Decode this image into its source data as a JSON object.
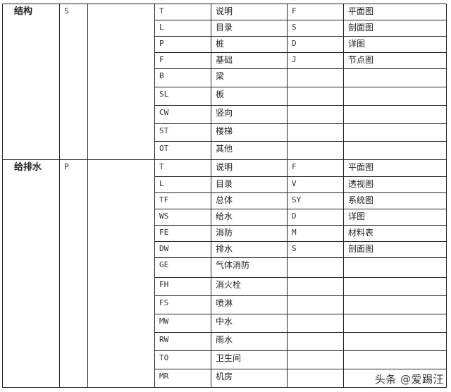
{
  "sections": [
    {
      "discipline": "结构",
      "code": "S",
      "rows": [
        [
          "T",
          "说明",
          "F",
          "平面图"
        ],
        [
          "L",
          "目录",
          "S",
          "剖面图"
        ],
        [
          "P",
          "桩",
          "D",
          "详图"
        ],
        [
          "F",
          "基础",
          "J",
          "节点图"
        ],
        [
          "B",
          "梁",
          "",
          ""
        ],
        [
          "SL",
          "板",
          "",
          ""
        ],
        [
          "CW",
          "竖向",
          "",
          ""
        ],
        [
          "ST",
          "楼梯",
          "",
          ""
        ],
        [
          "OT",
          "其他",
          "",
          ""
        ]
      ]
    },
    {
      "discipline": "给排水",
      "code": "P",
      "rows": [
        [
          "T",
          "说明",
          "F",
          "平面图"
        ],
        [
          "L",
          "目录",
          "V",
          "透视图"
        ],
        [
          "TF",
          "总体",
          "SY",
          "系统图"
        ],
        [
          "WS",
          "给水",
          "D",
          "详图"
        ],
        [
          "FE",
          "消防",
          "M",
          "材料表"
        ],
        [
          "DW",
          "排水",
          "S",
          "剖面图"
        ],
        [
          "GE",
          "气体消防",
          "",
          ""
        ],
        [
          "FH",
          "消火栓",
          "",
          ""
        ],
        [
          "FS",
          "喷淋",
          "",
          ""
        ],
        [
          "MW",
          "中水",
          "",
          ""
        ],
        [
          "RW",
          "雨水",
          "",
          ""
        ],
        [
          "TO",
          "卫生间",
          "",
          ""
        ],
        [
          "MR",
          "机房",
          "",
          ""
        ]
      ]
    }
  ],
  "watermark": "头条 @爱踢汪"
}
